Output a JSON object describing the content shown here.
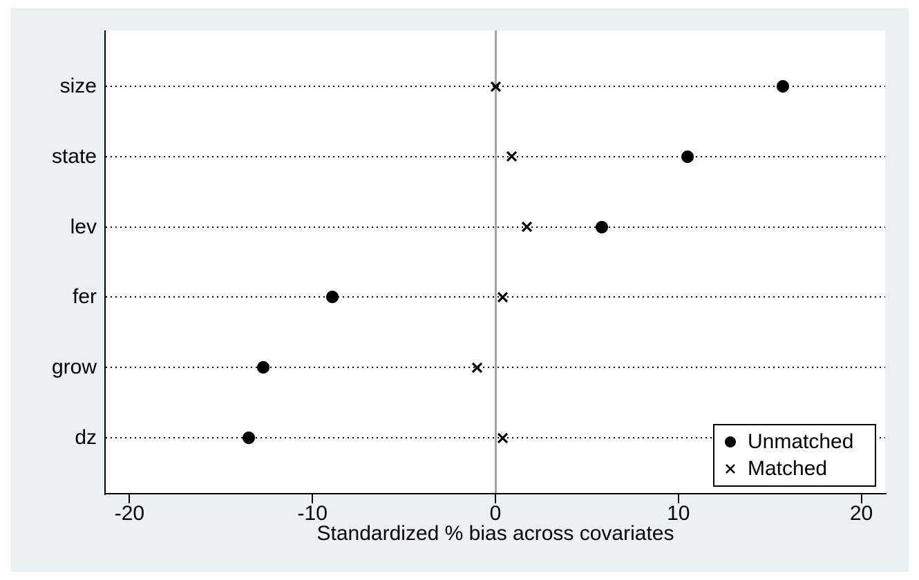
{
  "figure": {
    "xlabel": "Standardized % bias across covariates"
  },
  "chart_data": {
    "type": "scatter",
    "subtype": "horizontal-dot-plot (Stata pstest covariate balance plot)",
    "categories": [
      "size",
      "state",
      "lev",
      "fer",
      "grow",
      "dz"
    ],
    "series": [
      {
        "name": "Unmatched",
        "marker": "circle",
        "values": [
          15.7,
          10.5,
          5.8,
          -8.9,
          -12.7,
          -13.5
        ]
      },
      {
        "name": "Matched",
        "marker": "x",
        "values": [
          0.0,
          0.9,
          1.7,
          0.4,
          -1.0,
          0.4
        ]
      }
    ],
    "xlabel": "Standardized % bias across covariates",
    "ylabel": "",
    "title": "",
    "x_ticks": [
      -20,
      -10,
      0,
      10,
      20
    ],
    "xlim": [
      -21.3,
      21.3
    ],
    "reference_line_x": 0,
    "grid": "dotted-horizontal",
    "legend_position": "bottom-right"
  },
  "colors": {
    "page_background": "#ffffff",
    "figure_background": "#eaf1f3",
    "plot_background": "#ffffff",
    "axis": "#000000",
    "grid_dots": "#000000",
    "reference_line": "#a4a4a4",
    "marker": "#000000",
    "legend_border": "#000000"
  }
}
